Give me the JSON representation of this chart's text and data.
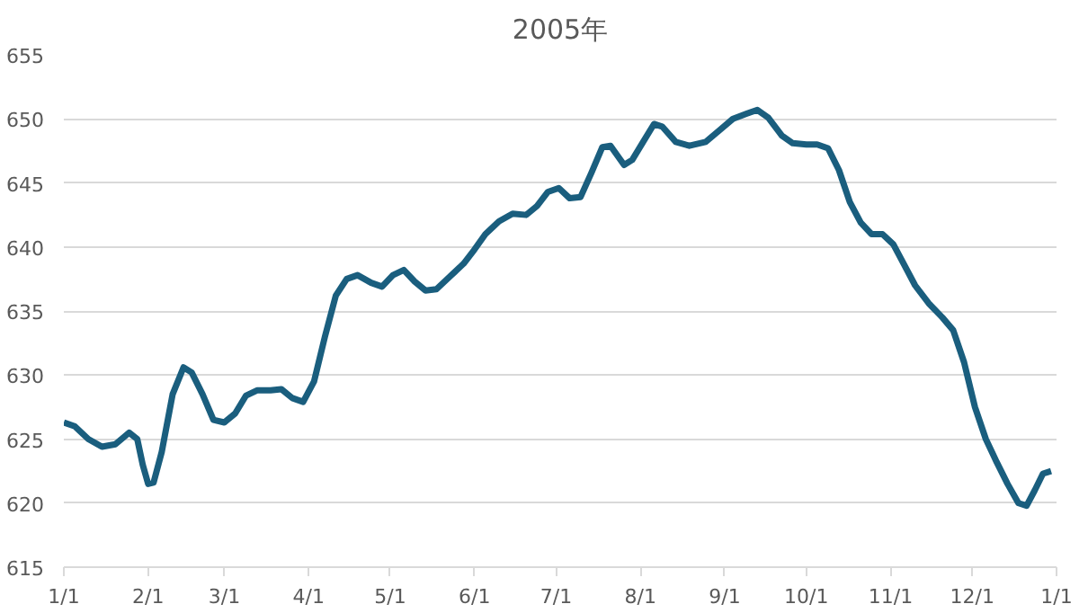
{
  "chart_data": {
    "type": "line",
    "title": "2005年",
    "x": [
      "2005-01-01",
      "2005-01-05",
      "2005-01-10",
      "2005-01-15",
      "2005-01-20",
      "2005-01-25",
      "2005-01-28",
      "2005-01-30",
      "2005-02-01",
      "2005-02-03",
      "2005-02-06",
      "2005-02-10",
      "2005-02-14",
      "2005-02-17",
      "2005-02-21",
      "2005-02-25",
      "2005-03-01",
      "2005-03-05",
      "2005-03-09",
      "2005-03-13",
      "2005-03-18",
      "2005-03-22",
      "2005-03-26",
      "2005-03-30",
      "2005-04-03",
      "2005-04-07",
      "2005-04-11",
      "2005-04-15",
      "2005-04-19",
      "2005-04-24",
      "2005-04-28",
      "2005-05-02",
      "2005-05-06",
      "2005-05-10",
      "2005-05-14",
      "2005-05-18",
      "2005-05-23",
      "2005-05-28",
      "2005-06-01",
      "2005-06-05",
      "2005-06-10",
      "2005-06-15",
      "2005-06-20",
      "2005-06-24",
      "2005-06-28",
      "2005-07-02",
      "2005-07-06",
      "2005-07-10",
      "2005-07-14",
      "2005-07-18",
      "2005-07-21",
      "2005-07-26",
      "2005-07-29",
      "2005-08-02",
      "2005-08-06",
      "2005-08-09",
      "2005-08-14",
      "2005-08-19",
      "2005-08-25",
      "2005-08-30",
      "2005-09-04",
      "2005-09-09",
      "2005-09-13",
      "2005-09-17",
      "2005-09-22",
      "2005-09-26",
      "2005-10-01",
      "2005-10-05",
      "2005-10-09",
      "2005-10-13",
      "2005-10-17",
      "2005-10-21",
      "2005-10-25",
      "2005-10-29",
      "2005-11-02",
      "2005-11-06",
      "2005-11-10",
      "2005-11-15",
      "2005-11-20",
      "2005-11-24",
      "2005-11-28",
      "2005-12-02",
      "2005-12-06",
      "2005-12-10",
      "2005-12-14",
      "2005-12-18",
      "2005-12-21",
      "2005-12-24",
      "2005-12-27",
      "2005-12-30"
    ],
    "series": [
      {
        "color": "#1a5e7e",
        "values": [
          626.3,
          626,
          625,
          624.4,
          624.6,
          625.5,
          625,
          623,
          621.5,
          621.6,
          624,
          628.5,
          630.6,
          630.2,
          628.5,
          626.5,
          626.3,
          627,
          628.4,
          628.8,
          628.8,
          628.9,
          628.2,
          627.9,
          629.5,
          633,
          636.2,
          637.5,
          637.8,
          637.2,
          636.9,
          637.8,
          638.2,
          637.3,
          636.6,
          636.7,
          637.7,
          638.7,
          639.8,
          641,
          642,
          642.6,
          642.5,
          643.2,
          644.3,
          644.6,
          643.8,
          643.9,
          645.8,
          647.8,
          647.9,
          646.4,
          646.8,
          648.2,
          649.6,
          649.4,
          648.2,
          647.9,
          648.2,
          649.1,
          650,
          650.4,
          650.7,
          650.1,
          648.7,
          648.1,
          648,
          648,
          647.7,
          646,
          643.5,
          641.9,
          641,
          641,
          640.2,
          638.6,
          637,
          635.6,
          634.5,
          633.5,
          631,
          627.5,
          625,
          623.2,
          621.5,
          620,
          619.8,
          621,
          622.3,
          622.5
        ]
      }
    ],
    "xlim": [
      "2005-01-01",
      "2006-01-01"
    ],
    "xticks": [
      {
        "value": "2005-01-01",
        "label": "1/1"
      },
      {
        "value": "2005-02-01",
        "label": "2/1"
      },
      {
        "value": "2005-03-01",
        "label": "3/1"
      },
      {
        "value": "2005-04-01",
        "label": "4/1"
      },
      {
        "value": "2005-05-01",
        "label": "5/1"
      },
      {
        "value": "2005-06-01",
        "label": "6/1"
      },
      {
        "value": "2005-07-01",
        "label": "7/1"
      },
      {
        "value": "2005-08-01",
        "label": "8/1"
      },
      {
        "value": "2005-09-01",
        "label": "9/1"
      },
      {
        "value": "2005-10-01",
        "label": "10/1"
      },
      {
        "value": "2005-11-01",
        "label": "11/1"
      },
      {
        "value": "2005-12-01",
        "label": "12/1"
      },
      {
        "value": "2006-01-01",
        "label": "1/1"
      }
    ],
    "ylim": [
      615,
      655
    ],
    "yticks": [
      615,
      620,
      625,
      630,
      635,
      640,
      645,
      650,
      655
    ],
    "grid": "y",
    "marker": "none",
    "line_style": "solid"
  }
}
